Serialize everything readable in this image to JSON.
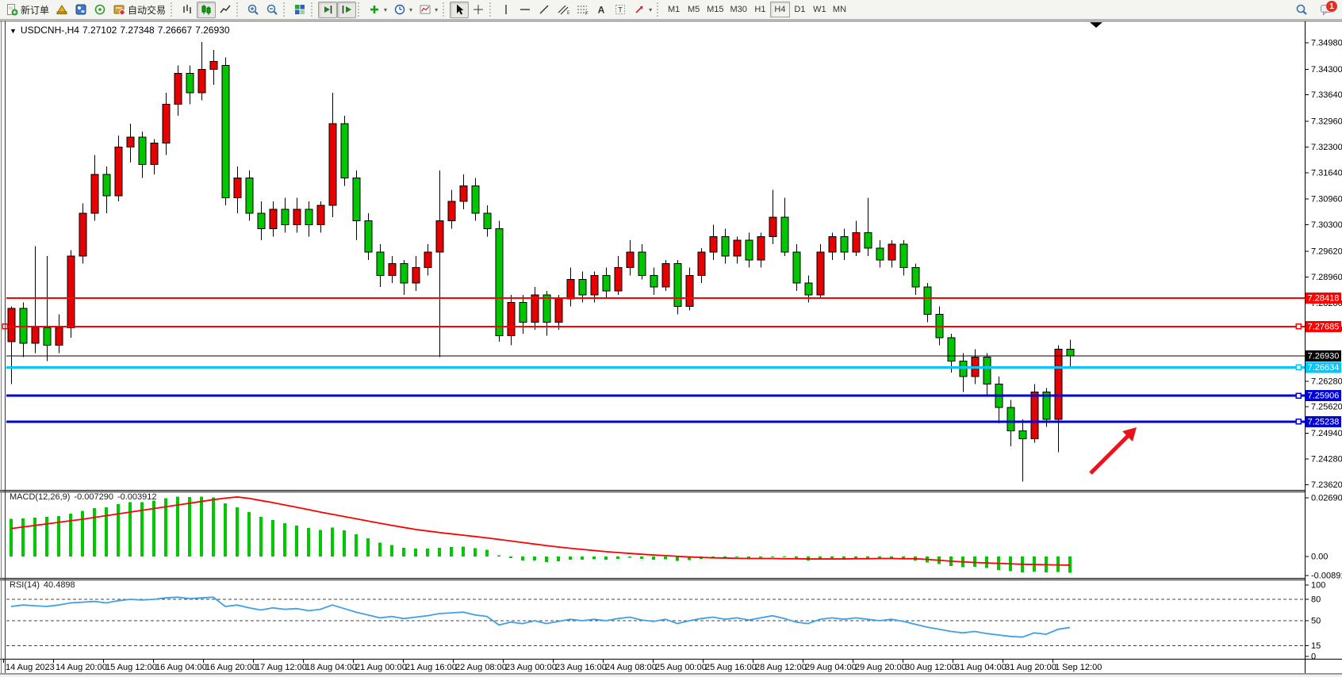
{
  "toolbar": {
    "groups": [
      {
        "items": [
          {
            "name": "new-order-button",
            "icon": "doc-plus",
            "label": "新订单"
          },
          {
            "name": "metaeditor-button",
            "icon": "gold-hat"
          },
          {
            "name": "market-watch-button",
            "icon": "blue-app"
          },
          {
            "name": "signals-button",
            "icon": "signal"
          },
          {
            "name": "autotrading-button",
            "icon": "ea-badge",
            "label": "自动交易"
          }
        ]
      },
      {
        "items": [
          {
            "name": "bar-chart-button",
            "icon": "bars"
          },
          {
            "name": "candlestick-chart-button",
            "icon": "candles",
            "active": true
          },
          {
            "name": "line-chart-button",
            "icon": "linechart"
          }
        ]
      },
      {
        "items": [
          {
            "name": "zoom-in-button",
            "icon": "zoom-in"
          },
          {
            "name": "zoom-out-button",
            "icon": "zoom-out"
          }
        ]
      },
      {
        "items": [
          {
            "name": "tile-windows-button",
            "icon": "tile"
          }
        ]
      },
      {
        "items": [
          {
            "name": "auto-scroll-button",
            "icon": "autoscroll",
            "active": true
          },
          {
            "name": "chart-shift-button",
            "icon": "chartshift",
            "active": true
          }
        ]
      },
      {
        "items": [
          {
            "name": "indicators-button",
            "icon": "indicator-plus",
            "dropdown": true
          },
          {
            "name": "periods-button",
            "icon": "clock",
            "dropdown": true
          },
          {
            "name": "templates-button",
            "icon": "template",
            "dropdown": true
          }
        ]
      },
      {
        "items": [
          {
            "name": "cursor-button",
            "icon": "cursor",
            "active": true
          },
          {
            "name": "crosshair-button",
            "icon": "crosshair"
          }
        ]
      },
      {
        "items": [
          {
            "name": "vertical-line-button",
            "icon": "vline"
          },
          {
            "name": "horizontal-line-button",
            "icon": "hline"
          },
          {
            "name": "trendline-button",
            "icon": "trend"
          },
          {
            "name": "equidistant-channel-button",
            "icon": "channel"
          },
          {
            "name": "fibonacci-button",
            "icon": "fibo"
          },
          {
            "name": "text-button",
            "icon": "textA"
          },
          {
            "name": "text-label-button",
            "icon": "labelT"
          },
          {
            "name": "arrows-button",
            "icon": "arrowsym",
            "dropdown": true
          }
        ]
      }
    ],
    "timeframes": [
      {
        "label": "M1"
      },
      {
        "label": "M5"
      },
      {
        "label": "M15"
      },
      {
        "label": "M30"
      },
      {
        "label": "H1"
      },
      {
        "label": "H4",
        "active": true
      },
      {
        "label": "D1"
      },
      {
        "label": "W1"
      },
      {
        "label": "MN"
      }
    ],
    "right": {
      "chat_badge": "1"
    }
  },
  "chart": {
    "title": {
      "symbol": "USDCNH-,H4",
      "open": "7.27102",
      "high": "7.27348",
      "low": "7.26667",
      "close": "7.26930"
    }
  },
  "macd_label": {
    "params": "MACD(12,26,9)",
    "value": "-0.007290",
    "signal_value": "-0.003912"
  },
  "rsi_label": {
    "params": "RSI(14)",
    "value": "40.4898"
  },
  "chart_data": {
    "type": "candlestick",
    "symbol": "USDCNH-,H4",
    "period": "H4",
    "current_bar": {
      "open": 7.27102,
      "high": 7.27348,
      "low": 7.26667,
      "close": 7.2693
    },
    "candles": [
      [
        7.273,
        7.282,
        7.262,
        7.2815
      ],
      [
        7.2815,
        7.283,
        7.269,
        7.2725
      ],
      [
        7.2725,
        7.2975,
        7.27,
        7.2765
      ],
      [
        7.2765,
        7.295,
        7.268,
        7.272
      ],
      [
        7.272,
        7.28,
        7.27,
        7.2765
      ],
      [
        7.2765,
        7.2965,
        7.274,
        7.295
      ],
      [
        7.295,
        7.3085,
        7.293,
        7.306
      ],
      [
        7.306,
        7.321,
        7.304,
        7.316
      ],
      [
        7.316,
        7.318,
        7.306,
        7.3105
      ],
      [
        7.3105,
        7.326,
        7.309,
        7.323
      ],
      [
        7.323,
        7.329,
        7.319,
        7.3255
      ],
      [
        7.3255,
        7.327,
        7.315,
        7.3185
      ],
      [
        7.3185,
        7.325,
        7.316,
        7.324
      ],
      [
        7.324,
        7.337,
        7.321,
        7.334
      ],
      [
        7.334,
        7.344,
        7.331,
        7.342
      ],
      [
        7.342,
        7.344,
        7.334,
        7.337
      ],
      [
        7.337,
        7.35,
        7.335,
        7.343
      ],
      [
        7.343,
        7.348,
        7.339,
        7.345
      ],
      [
        7.344,
        7.346,
        7.308,
        7.31
      ],
      [
        7.31,
        7.318,
        7.306,
        7.315
      ],
      [
        7.315,
        7.317,
        7.304,
        7.306
      ],
      [
        7.306,
        7.309,
        7.299,
        7.302
      ],
      [
        7.302,
        7.309,
        7.3,
        7.307
      ],
      [
        7.307,
        7.31,
        7.301,
        7.303
      ],
      [
        7.303,
        7.31,
        7.301,
        7.307
      ],
      [
        7.307,
        7.309,
        7.3,
        7.303
      ],
      [
        7.303,
        7.309,
        7.301,
        7.308
      ],
      [
        7.308,
        7.337,
        7.305,
        7.329
      ],
      [
        7.329,
        7.331,
        7.313,
        7.315
      ],
      [
        7.315,
        7.317,
        7.299,
        7.304
      ],
      [
        7.304,
        7.306,
        7.294,
        7.296
      ],
      [
        7.296,
        7.298,
        7.287,
        7.29
      ],
      [
        7.29,
        7.295,
        7.288,
        7.293
      ],
      [
        7.293,
        7.294,
        7.285,
        7.288
      ],
      [
        7.288,
        7.295,
        7.286,
        7.292
      ],
      [
        7.292,
        7.298,
        7.29,
        7.296
      ],
      [
        7.296,
        7.317,
        7.269,
        7.304
      ],
      [
        7.304,
        7.312,
        7.302,
        7.309
      ],
      [
        7.309,
        7.316,
        7.307,
        7.313
      ],
      [
        7.313,
        7.315,
        7.304,
        7.306
      ],
      [
        7.306,
        7.308,
        7.3,
        7.302
      ],
      [
        7.302,
        7.304,
        7.273,
        7.2745
      ],
      [
        7.2745,
        7.285,
        7.272,
        7.283
      ],
      [
        7.283,
        7.285,
        7.275,
        7.278
      ],
      [
        7.278,
        7.287,
        7.276,
        7.285
      ],
      [
        7.285,
        7.286,
        7.2745,
        7.278
      ],
      [
        7.278,
        7.285,
        7.276,
        7.284
      ],
      [
        7.284,
        7.292,
        7.282,
        7.289
      ],
      [
        7.289,
        7.291,
        7.283,
        7.285
      ],
      [
        7.285,
        7.291,
        7.283,
        7.29
      ],
      [
        7.29,
        7.292,
        7.284,
        7.286
      ],
      [
        7.286,
        7.295,
        7.285,
        7.292
      ],
      [
        7.292,
        7.299,
        7.29,
        7.296
      ],
      [
        7.296,
        7.298,
        7.289,
        7.29
      ],
      [
        7.29,
        7.292,
        7.285,
        7.287
      ],
      [
        7.287,
        7.294,
        7.286,
        7.293
      ],
      [
        7.293,
        7.294,
        7.28,
        7.282
      ],
      [
        7.282,
        7.292,
        7.281,
        7.29
      ],
      [
        7.29,
        7.297,
        7.288,
        7.296
      ],
      [
        7.296,
        7.303,
        7.294,
        7.3
      ],
      [
        7.3,
        7.302,
        7.293,
        7.295
      ],
      [
        7.295,
        7.3,
        7.293,
        7.299
      ],
      [
        7.299,
        7.301,
        7.292,
        7.294
      ],
      [
        7.294,
        7.301,
        7.292,
        7.3
      ],
      [
        7.3,
        7.312,
        7.298,
        7.305
      ],
      [
        7.305,
        7.31,
        7.295,
        7.296
      ],
      [
        7.296,
        7.298,
        7.286,
        7.288
      ],
      [
        7.288,
        7.29,
        7.283,
        7.285
      ],
      [
        7.285,
        7.298,
        7.284,
        7.296
      ],
      [
        7.296,
        7.301,
        7.294,
        7.3
      ],
      [
        7.3,
        7.302,
        7.294,
        7.296
      ],
      [
        7.296,
        7.304,
        7.295,
        7.301
      ],
      [
        7.301,
        7.31,
        7.295,
        7.297
      ],
      [
        7.297,
        7.299,
        7.292,
        7.294
      ],
      [
        7.294,
        7.299,
        7.292,
        7.298
      ],
      [
        7.298,
        7.299,
        7.29,
        7.292
      ],
      [
        7.292,
        7.293,
        7.285,
        7.287
      ],
      [
        7.287,
        7.288,
        7.278,
        7.28
      ],
      [
        7.28,
        7.282,
        7.272,
        7.274
      ],
      [
        7.274,
        7.275,
        7.265,
        7.268
      ],
      [
        7.268,
        7.27,
        7.26,
        7.264
      ],
      [
        7.264,
        7.271,
        7.262,
        7.269
      ],
      [
        7.269,
        7.27,
        7.259,
        7.262
      ],
      [
        7.262,
        7.264,
        7.252,
        7.256
      ],
      [
        7.256,
        7.258,
        7.246,
        7.25
      ],
      [
        7.25,
        7.253,
        7.237,
        7.248
      ],
      [
        7.248,
        7.262,
        7.247,
        7.26
      ],
      [
        7.26,
        7.261,
        7.251,
        7.253
      ],
      [
        7.253,
        7.272,
        7.2445,
        7.271
      ],
      [
        7.27102,
        7.27348,
        7.26667,
        7.2693
      ]
    ],
    "price_axis_ticks": [
      [
        "7.34980",
        7.3498
      ],
      [
        "7.34300",
        7.343
      ],
      [
        "7.33640",
        7.3364
      ],
      [
        "7.32960",
        7.3296
      ],
      [
        "7.32300",
        7.323
      ],
      [
        "7.31640",
        7.3164
      ],
      [
        "7.30960",
        7.3096
      ],
      [
        "7.30300",
        7.303
      ],
      [
        "7.29620",
        7.2962
      ],
      [
        "7.28960",
        7.2896
      ],
      [
        "7.28280",
        7.2828
      ],
      [
        "7.27620",
        7.2762
      ],
      [
        "7.26280",
        7.2628
      ],
      [
        "7.25620",
        7.2562
      ],
      [
        "7.24940",
        7.2494
      ],
      [
        "7.24280",
        7.2428
      ],
      [
        "7.23620",
        7.2362
      ]
    ],
    "price_lines": [
      {
        "label": "7.28418",
        "price": 7.28418,
        "color": "#ff0000",
        "w": 2,
        "handles": []
      },
      {
        "label": "7.27685",
        "price": 7.27685,
        "color": "#ff0000",
        "w": 2,
        "handles": [
          6,
          1637
        ]
      },
      {
        "label": "7.26930",
        "price": 7.2693,
        "color": "#000000",
        "w": 1,
        "handles": []
      },
      {
        "label": "7.26634",
        "price": 7.26634,
        "color": "#00c8ff",
        "w": 3,
        "handles": [
          1637
        ]
      },
      {
        "label": "7.25906",
        "price": 7.25906,
        "color": "#0000d8",
        "w": 3,
        "handles": [
          1637
        ]
      },
      {
        "label": "7.25238",
        "price": 7.25238,
        "color": "#0000d8",
        "w": 3,
        "handles": [
          1637
        ]
      }
    ],
    "time_labels": [
      "14 Aug 2023",
      "14 Aug 20:00",
      "15 Aug 12:00",
      "16 Aug 04:00",
      "16 Aug 20:00",
      "17 Aug 12:00",
      "18 Aug 04:00",
      "21 Aug 00:00",
      "21 Aug 16:00",
      "22 Aug 08:00",
      "23 Aug 00:00",
      "23 Aug 16:00",
      "24 Aug 08:00",
      "25 Aug 00:00",
      "25 Aug 16:00",
      "28 Aug 12:00",
      "29 Aug 04:00",
      "29 Aug 20:00",
      "30 Aug 12:00",
      "31 Aug 04:00",
      "31 Aug 20:00",
      "1 Sep 12:00"
    ],
    "macd": {
      "scale_labels": [
        [
          "0.026909",
          0.026909
        ],
        [
          "0.00",
          0.0
        ],
        [
          "-0.008918",
          -0.008918
        ]
      ],
      "histogram": [
        0.017,
        0.0172,
        0.0175,
        0.0178,
        0.0182,
        0.0192,
        0.0205,
        0.0218,
        0.0222,
        0.0235,
        0.0245,
        0.0245,
        0.0252,
        0.0262,
        0.0269,
        0.0267,
        0.0269,
        0.0266,
        0.024,
        0.0222,
        0.02,
        0.0178,
        0.0165,
        0.015,
        0.014,
        0.0128,
        0.012,
        0.013,
        0.0118,
        0.01,
        0.0082,
        0.0062,
        0.0052,
        0.004,
        0.0035,
        0.0035,
        0.004,
        0.0042,
        0.0045,
        0.0038,
        0.003,
        0.0005,
        -0.0008,
        -0.0018,
        -0.0018,
        -0.0025,
        -0.0022,
        -0.0015,
        -0.0015,
        -0.0012,
        -0.0014,
        -0.001,
        -0.0006,
        -0.001,
        -0.0014,
        -0.0012,
        -0.002,
        -0.0016,
        -0.001,
        -0.0005,
        -0.0006,
        -0.0004,
        -0.0008,
        -0.0005,
        0.0,
        -0.0003,
        -0.0012,
        -0.0018,
        -0.0012,
        -0.0008,
        -0.001,
        -0.0007,
        -0.0008,
        -0.001,
        -0.0008,
        -0.0012,
        -0.0018,
        -0.0026,
        -0.0034,
        -0.0042,
        -0.0048,
        -0.0046,
        -0.0052,
        -0.006,
        -0.0066,
        -0.0072,
        -0.0068,
        -0.0072,
        -0.007,
        -0.0073
      ],
      "signal": [
        0.0126,
        0.0133,
        0.014,
        0.0147,
        0.0154,
        0.0161,
        0.0168,
        0.0176,
        0.0184,
        0.0192,
        0.02,
        0.0208,
        0.0216,
        0.0224,
        0.0232,
        0.024,
        0.0248,
        0.0256,
        0.0263,
        0.0268,
        0.0262,
        0.0252,
        0.0243,
        0.0232,
        0.0222,
        0.0211,
        0.02,
        0.019,
        0.018,
        0.017,
        0.016,
        0.015,
        0.014,
        0.0131,
        0.0122,
        0.0115,
        0.0108,
        0.0102,
        0.0096,
        0.009,
        0.0084,
        0.0077,
        0.007,
        0.0063,
        0.0056,
        0.0049,
        0.0043,
        0.0037,
        0.0032,
        0.0027,
        0.0022,
        0.0018,
        0.0014,
        0.001,
        0.0007,
        0.0004,
        0.0001,
        -0.0002,
        -0.0004,
        -0.0006,
        -0.0007,
        -0.0008,
        -0.0009,
        -0.0009,
        -0.0009,
        -0.001,
        -0.001,
        -0.0011,
        -0.0011,
        -0.0011,
        -0.0011,
        -0.001,
        -0.001,
        -0.0009,
        -0.0009,
        -0.001,
        -0.001,
        -0.0013,
        -0.0017,
        -0.0021,
        -0.0024,
        -0.0027,
        -0.0029,
        -0.0031,
        -0.0033,
        -0.0035,
        -0.0036,
        -0.0037,
        -0.0038,
        -0.0039
      ]
    },
    "rsi": {
      "levels": [
        [
          "100",
          100
        ],
        [
          "80",
          80
        ],
        [
          "50",
          50
        ],
        [
          "15",
          15
        ],
        [
          "0",
          0
        ]
      ],
      "dashed_levels": [
        80,
        50,
        15
      ],
      "values": [
        70,
        72,
        71,
        70,
        72,
        75,
        76,
        77,
        75,
        78,
        80,
        79,
        80,
        82,
        83,
        81,
        82,
        83,
        70,
        72,
        68,
        65,
        68,
        66,
        67,
        64,
        66,
        72,
        67,
        62,
        58,
        54,
        56,
        53,
        55,
        57,
        60,
        61,
        62,
        58,
        56,
        44,
        48,
        46,
        50,
        46,
        49,
        52,
        50,
        52,
        50,
        53,
        55,
        51,
        49,
        52,
        46,
        50,
        53,
        55,
        52,
        54,
        51,
        54,
        57,
        53,
        48,
        46,
        52,
        54,
        52,
        54,
        52,
        50,
        52,
        49,
        45,
        41,
        38,
        35,
        33,
        35,
        32,
        30,
        28,
        27,
        33,
        31,
        38,
        40.49
      ]
    },
    "annotation_arrow": {
      "from": [
        1375,
        597
      ],
      "to": [
        1432,
        540
      ],
      "color": "#e8141c"
    },
    "colors": {
      "up_candle": "#e60000",
      "down_candle": "#00c600",
      "wick": "#000000",
      "macd_histogram": "#00c800",
      "macd_signal": "#ff0000",
      "rsi_line": "#3fa0e8",
      "resistance_line": "#ff0000",
      "support_cyan": "#00c8ff",
      "support_blue": "#0000d8",
      "current_price_line": "#000000",
      "background": "#ffffff"
    }
  }
}
